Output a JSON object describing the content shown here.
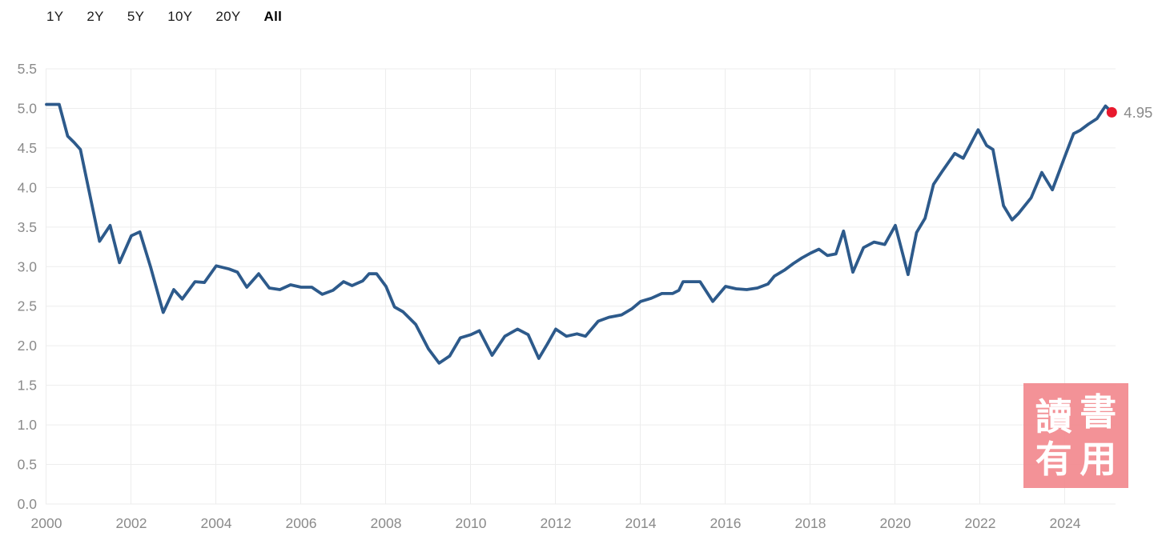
{
  "range_selector": {
    "buttons": [
      {
        "label": "1Y",
        "active": false
      },
      {
        "label": "2Y",
        "active": false
      },
      {
        "label": "5Y",
        "active": false
      },
      {
        "label": "10Y",
        "active": false
      },
      {
        "label": "20Y",
        "active": false
      },
      {
        "label": "All",
        "active": true
      }
    ]
  },
  "chart_data": {
    "type": "line",
    "title": "",
    "xlabel": "",
    "ylabel": "",
    "legend": "none",
    "grid": true,
    "x_axis": {
      "range": [
        2000,
        2025.2
      ],
      "ticks": [
        {
          "v": 2000,
          "label": "2000"
        },
        {
          "v": 2002,
          "label": "2002"
        },
        {
          "v": 2004,
          "label": "2004"
        },
        {
          "v": 2006,
          "label": "2006"
        },
        {
          "v": 2008,
          "label": "2008"
        },
        {
          "v": 2010,
          "label": "2010"
        },
        {
          "v": 2012,
          "label": "2012"
        },
        {
          "v": 2014,
          "label": "2014"
        },
        {
          "v": 2016,
          "label": "2016"
        },
        {
          "v": 2018,
          "label": "2018"
        },
        {
          "v": 2020,
          "label": "2020"
        },
        {
          "v": 2022,
          "label": "2022"
        },
        {
          "v": 2024,
          "label": "2024"
        }
      ]
    },
    "y_axis": {
      "range": [
        0,
        5.5
      ],
      "ticks": [
        {
          "v": 0.0,
          "label": "0.0"
        },
        {
          "v": 0.5,
          "label": "0.5"
        },
        {
          "v": 1.0,
          "label": "1.0"
        },
        {
          "v": 1.5,
          "label": "1.5"
        },
        {
          "v": 2.0,
          "label": "2.0"
        },
        {
          "v": 2.5,
          "label": "2.5"
        },
        {
          "v": 3.0,
          "label": "3.0"
        },
        {
          "v": 3.5,
          "label": "3.5"
        },
        {
          "v": 4.0,
          "label": "4.0"
        },
        {
          "v": 4.5,
          "label": "4.5"
        },
        {
          "v": 5.0,
          "label": "5.0"
        },
        {
          "v": 5.5,
          "label": "5.5"
        }
      ]
    },
    "series": [
      {
        "name": "rate",
        "points": [
          [
            2000.0,
            5.05
          ],
          [
            2000.3,
            5.05
          ],
          [
            2000.5,
            4.65
          ],
          [
            2000.65,
            4.57
          ],
          [
            2000.8,
            4.48
          ],
          [
            2001.25,
            3.32
          ],
          [
            2001.5,
            3.52
          ],
          [
            2001.72,
            3.05
          ],
          [
            2002.0,
            3.39
          ],
          [
            2002.2,
            3.44
          ],
          [
            2002.45,
            3.0
          ],
          [
            2002.75,
            2.42
          ],
          [
            2003.0,
            2.71
          ],
          [
            2003.2,
            2.59
          ],
          [
            2003.5,
            2.81
          ],
          [
            2003.72,
            2.8
          ],
          [
            2004.0,
            3.01
          ],
          [
            2004.3,
            2.97
          ],
          [
            2004.5,
            2.93
          ],
          [
            2004.72,
            2.74
          ],
          [
            2005.0,
            2.91
          ],
          [
            2005.25,
            2.73
          ],
          [
            2005.5,
            2.71
          ],
          [
            2005.75,
            2.77
          ],
          [
            2006.0,
            2.74
          ],
          [
            2006.25,
            2.74
          ],
          [
            2006.5,
            2.65
          ],
          [
            2006.75,
            2.7
          ],
          [
            2007.0,
            2.81
          ],
          [
            2007.2,
            2.76
          ],
          [
            2007.45,
            2.82
          ],
          [
            2007.6,
            2.91
          ],
          [
            2007.78,
            2.91
          ],
          [
            2008.0,
            2.75
          ],
          [
            2008.2,
            2.49
          ],
          [
            2008.4,
            2.43
          ],
          [
            2008.7,
            2.27
          ],
          [
            2009.0,
            1.96
          ],
          [
            2009.25,
            1.78
          ],
          [
            2009.5,
            1.87
          ],
          [
            2009.75,
            2.1
          ],
          [
            2010.0,
            2.14
          ],
          [
            2010.2,
            2.19
          ],
          [
            2010.5,
            1.88
          ],
          [
            2010.8,
            2.12
          ],
          [
            2011.1,
            2.21
          ],
          [
            2011.35,
            2.14
          ],
          [
            2011.6,
            1.84
          ],
          [
            2011.8,
            2.02
          ],
          [
            2012.0,
            2.21
          ],
          [
            2012.25,
            2.12
          ],
          [
            2012.5,
            2.15
          ],
          [
            2012.7,
            2.12
          ],
          [
            2013.0,
            2.31
          ],
          [
            2013.25,
            2.36
          ],
          [
            2013.55,
            2.39
          ],
          [
            2013.8,
            2.47
          ],
          [
            2014.0,
            2.56
          ],
          [
            2014.25,
            2.6
          ],
          [
            2014.5,
            2.66
          ],
          [
            2014.75,
            2.66
          ],
          [
            2014.9,
            2.7
          ],
          [
            2015.0,
            2.81
          ],
          [
            2015.4,
            2.81
          ],
          [
            2015.7,
            2.56
          ],
          [
            2016.0,
            2.75
          ],
          [
            2016.25,
            2.72
          ],
          [
            2016.5,
            2.71
          ],
          [
            2016.75,
            2.73
          ],
          [
            2017.0,
            2.78
          ],
          [
            2017.15,
            2.88
          ],
          [
            2017.4,
            2.96
          ],
          [
            2017.6,
            3.04
          ],
          [
            2017.8,
            3.11
          ],
          [
            2018.0,
            3.17
          ],
          [
            2018.2,
            3.22
          ],
          [
            2018.4,
            3.14
          ],
          [
            2018.6,
            3.16
          ],
          [
            2018.78,
            3.45
          ],
          [
            2019.0,
            2.93
          ],
          [
            2019.25,
            3.24
          ],
          [
            2019.5,
            3.31
          ],
          [
            2019.75,
            3.28
          ],
          [
            2020.0,
            3.52
          ],
          [
            2020.3,
            2.9
          ],
          [
            2020.5,
            3.43
          ],
          [
            2020.7,
            3.61
          ],
          [
            2020.9,
            4.04
          ],
          [
            2021.1,
            4.2
          ],
          [
            2021.4,
            4.43
          ],
          [
            2021.6,
            4.37
          ],
          [
            2021.95,
            4.73
          ],
          [
            2022.15,
            4.53
          ],
          [
            2022.3,
            4.48
          ],
          [
            2022.55,
            3.77
          ],
          [
            2022.75,
            3.59
          ],
          [
            2022.9,
            3.67
          ],
          [
            2023.2,
            3.87
          ],
          [
            2023.45,
            4.19
          ],
          [
            2023.7,
            3.97
          ],
          [
            2024.0,
            4.4
          ],
          [
            2024.2,
            4.68
          ],
          [
            2024.35,
            4.72
          ],
          [
            2024.55,
            4.8
          ],
          [
            2024.75,
            4.87
          ],
          [
            2024.95,
            5.03
          ],
          [
            2025.1,
            4.95
          ]
        ]
      }
    ],
    "last_point": [
      2025.1,
      4.95
    ],
    "last_value_label": "4.95",
    "colors": {
      "line": "#2d5a8b",
      "marker": "#e8192d",
      "grid": "#ededed",
      "axis_text": "#8a8a8a",
      "value_label": "#8a8a8a"
    }
  },
  "watermark": {
    "text": "讀書有用",
    "chars": [
      "讀",
      "書",
      "有",
      "用"
    ],
    "background": "rgba(242,134,140,0.9)",
    "text_color": "#ffffff"
  }
}
